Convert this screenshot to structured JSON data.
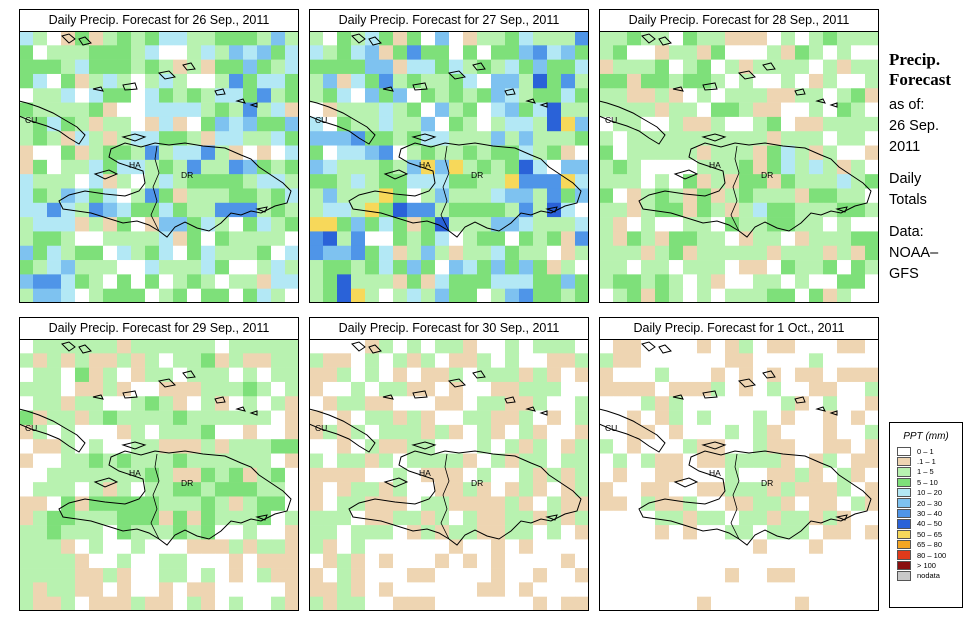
{
  "panels": [
    {
      "title": "Daily Precip. Forecast for  26 Sep., 2011",
      "seed": 11,
      "wet": 0.85
    },
    {
      "title": "Daily Precip. Forecast for  27 Sep., 2011",
      "seed": 27,
      "wet": 1.0
    },
    {
      "title": "Daily Precip. Forecast for  28 Sep., 2011",
      "seed": 43,
      "wet": 0.6
    },
    {
      "title": "Daily Precip. Forecast for  29 Sep., 2011",
      "seed": 59,
      "wet": 0.55
    },
    {
      "title": "Daily Precip. Forecast for  30 Sep., 2011",
      "seed": 71,
      "wet": 0.35
    },
    {
      "title": "Daily Precip. Forecast for  1 Oct., 2011",
      "seed": 83,
      "wet": 0.25
    }
  ],
  "map_labels": {
    "cuba": "CU",
    "haiti": "HA",
    "dominican_republic": "DR"
  },
  "side_info": {
    "title_line1": "Precip.",
    "title_line2": "Forecast",
    "asof_label": "as of:",
    "date_line1": "26 Sep.",
    "date_line2": "2011",
    "totals_line1": "Daily",
    "totals_line2": "Totals",
    "source_line1": "Data:",
    "source_line2": "NOAA–",
    "source_line3": "GFS"
  },
  "legend": {
    "title": "PPT (mm)",
    "items": [
      {
        "label": "0 – 1",
        "color": "#ffffff"
      },
      {
        "label": ".1 – 1",
        "color": "#eed5b2"
      },
      {
        "label": "1 – 5",
        "color": "#b8f2b0"
      },
      {
        "label": "5 – 10",
        "color": "#7ee07a"
      },
      {
        "label": "10 – 20",
        "color": "#b3e8f5"
      },
      {
        "label": "20 – 30",
        "color": "#7ec2f0"
      },
      {
        "label": "30 – 40",
        "color": "#4f95e8"
      },
      {
        "label": "40 – 50",
        "color": "#2a62d8"
      },
      {
        "label": "50 – 65",
        "color": "#f7d85a"
      },
      {
        "label": "65 – 80",
        "color": "#f5a623"
      },
      {
        "label": "80 – 100",
        "color": "#e03a1a"
      },
      {
        "label": "> 100",
        "color": "#8a1010"
      },
      {
        "label": "nodata",
        "color": "#c8c8c8"
      }
    ]
  }
}
